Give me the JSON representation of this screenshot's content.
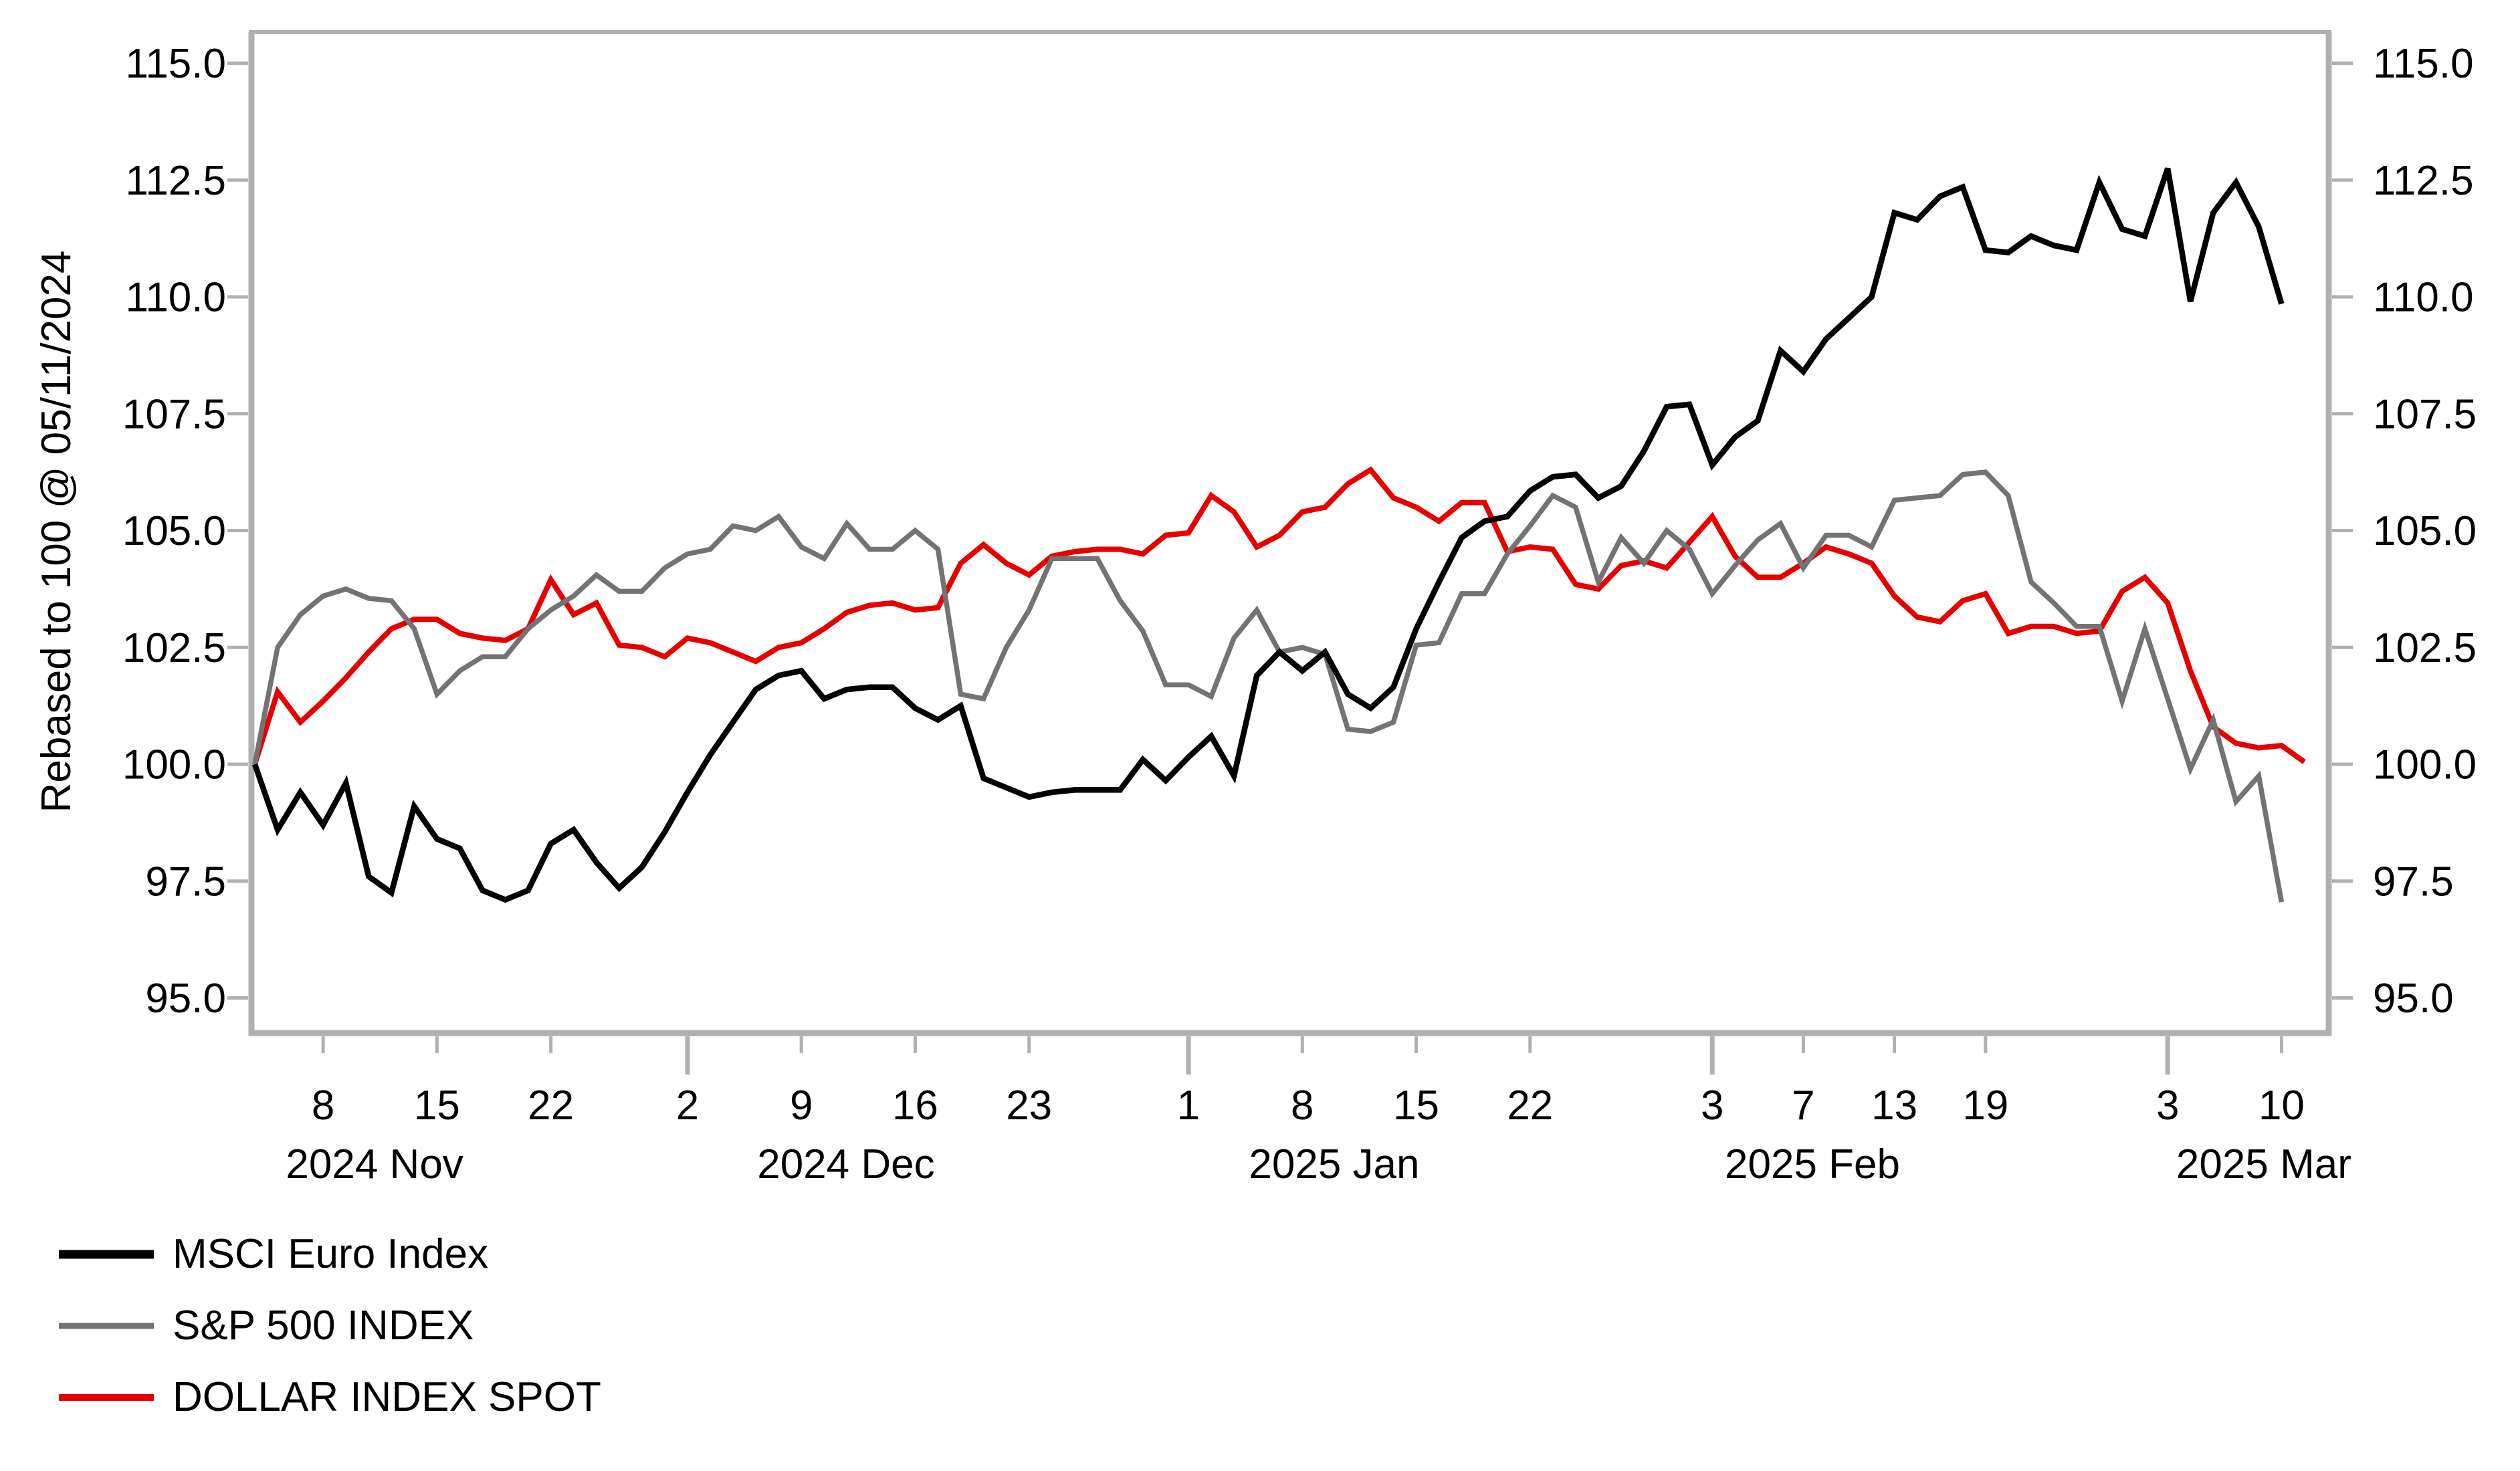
{
  "chart_data": {
    "type": "line",
    "title": "",
    "ylabel": "Rebased to 100 @ 05/11/2024",
    "y_axis": {
      "ticks": [
        95.0,
        97.5,
        100.0,
        102.5,
        105.0,
        107.5,
        110.0,
        112.5,
        115.0
      ],
      "tick_decimals": 1,
      "labels_on_both_sides": true,
      "ylim": [
        94.2,
        115.7
      ]
    },
    "x_axis": {
      "ticks": [
        {
          "label": "8",
          "index": 3,
          "major": false
        },
        {
          "label": "15",
          "index": 8,
          "major": false
        },
        {
          "label": "22",
          "index": 13,
          "major": false
        },
        {
          "label": "2",
          "index": 19,
          "major": true
        },
        {
          "label": "9",
          "index": 24,
          "major": false
        },
        {
          "label": "16",
          "index": 29,
          "major": false
        },
        {
          "label": "23",
          "index": 34,
          "major": false
        },
        {
          "label": "1",
          "index": 41,
          "major": true
        },
        {
          "label": "8",
          "index": 46,
          "major": false
        },
        {
          "label": "15",
          "index": 51,
          "major": false
        },
        {
          "label": "22",
          "index": 56,
          "major": false
        },
        {
          "label": "3",
          "index": 64,
          "major": true
        },
        {
          "label": "7",
          "index": 68,
          "major": false
        },
        {
          "label": "13",
          "index": 72,
          "major": false
        },
        {
          "label": "19",
          "index": 76,
          "major": false
        },
        {
          "label": "3",
          "index": 84,
          "major": true
        },
        {
          "label": "10",
          "index": 89,
          "major": false
        }
      ],
      "month_labels": [
        {
          "label": "2024 Nov",
          "index": 5.26
        },
        {
          "label": "2024 Dec",
          "index": 25.96
        },
        {
          "label": "2025 Jan",
          "index": 47.4
        },
        {
          "label": "2025 Feb",
          "index": 68.4
        },
        {
          "label": "2025 Mar",
          "index": 88.22
        }
      ]
    },
    "grid": false,
    "frame_color": "#b0b0b0",
    "dates": [
      "2024-11-05",
      "2024-11-06",
      "2024-11-07",
      "2024-11-08",
      "2024-11-11",
      "2024-11-12",
      "2024-11-13",
      "2024-11-14",
      "2024-11-15",
      "2024-11-18",
      "2024-11-19",
      "2024-11-20",
      "2024-11-21",
      "2024-11-22",
      "2024-11-25",
      "2024-11-26",
      "2024-11-27",
      "2024-11-28",
      "2024-11-29",
      "2024-12-02",
      "2024-12-03",
      "2024-12-04",
      "2024-12-05",
      "2024-12-06",
      "2024-12-09",
      "2024-12-10",
      "2024-12-11",
      "2024-12-12",
      "2024-12-13",
      "2024-12-16",
      "2024-12-17",
      "2024-12-18",
      "2024-12-19",
      "2024-12-20",
      "2024-12-23",
      "2024-12-24",
      "2024-12-25",
      "2024-12-26",
      "2024-12-27",
      "2024-12-30",
      "2024-12-31",
      "2025-01-01",
      "2025-01-02",
      "2025-01-03",
      "2025-01-06",
      "2025-01-07",
      "2025-01-08",
      "2025-01-09",
      "2025-01-10",
      "2025-01-13",
      "2025-01-14",
      "2025-01-15",
      "2025-01-16",
      "2025-01-17",
      "2025-01-20",
      "2025-01-21",
      "2025-01-22",
      "2025-01-23",
      "2025-01-24",
      "2025-01-27",
      "2025-01-28",
      "2025-01-29",
      "2025-01-30",
      "2025-01-31",
      "2025-02-03",
      "2025-02-04",
      "2025-02-05",
      "2025-02-06",
      "2025-02-07",
      "2025-02-10",
      "2025-02-11",
      "2025-02-12",
      "2025-02-13",
      "2025-02-14",
      "2025-02-17",
      "2025-02-18",
      "2025-02-19",
      "2025-02-20",
      "2025-02-21",
      "2025-02-24",
      "2025-02-25",
      "2025-02-26",
      "2025-02-27",
      "2025-02-28",
      "2025-03-03",
      "2025-03-04",
      "2025-03-05",
      "2025-03-06",
      "2025-03-07",
      "2025-03-10",
      "2025-03-11"
    ],
    "series": [
      {
        "name": "MSCI Euro Index",
        "color": "#000000",
        "values": [
          100.0,
          98.6,
          99.4,
          98.7,
          99.6,
          97.6,
          97.25,
          99.1,
          98.4,
          98.2,
          97.3,
          97.1,
          97.3,
          98.3,
          98.6,
          97.9,
          97.35,
          97.8,
          98.55,
          99.4,
          100.2,
          100.9,
          101.6,
          101.9,
          102.0,
          101.4,
          101.6,
          101.65,
          101.65,
          101.2,
          100.95,
          101.25,
          99.7,
          99.5,
          99.3,
          99.4,
          99.45,
          99.45,
          99.45,
          100.1,
          99.65,
          100.15,
          100.6,
          99.75,
          101.9,
          102.4,
          102.0,
          102.4,
          101.5,
          101.2,
          101.65,
          102.9,
          103.9,
          104.85,
          105.2,
          105.3,
          105.85,
          106.15,
          106.2,
          105.7,
          105.95,
          106.7,
          107.65,
          107.7,
          106.4,
          107.0,
          107.35,
          108.85,
          108.4,
          109.1,
          109.55,
          110.0,
          111.8,
          111.65,
          112.15,
          112.35,
          111.0,
          110.95,
          111.3,
          111.1,
          111.0,
          112.45,
          111.45,
          111.3,
          112.75,
          109.9,
          111.8,
          112.45,
          111.5,
          109.85,
          null
        ]
      },
      {
        "name": "S&P 500 INDEX",
        "color": "#737373",
        "values": [
          100.0,
          102.5,
          103.2,
          103.6,
          103.75,
          103.55,
          103.5,
          102.9,
          101.5,
          102.0,
          102.3,
          102.3,
          102.9,
          103.3,
          103.6,
          104.05,
          103.7,
          103.7,
          104.2,
          104.5,
          104.6,
          105.1,
          105.0,
          105.3,
          104.65,
          104.4,
          105.15,
          104.6,
          104.6,
          105.0,
          104.6,
          101.5,
          101.4,
          102.5,
          103.3,
          104.4,
          104.4,
          104.4,
          103.5,
          102.85,
          101.7,
          101.7,
          101.45,
          102.7,
          103.3,
          102.4,
          102.5,
          102.35,
          100.75,
          100.7,
          100.9,
          102.55,
          102.6,
          103.65,
          103.65,
          104.5,
          105.1,
          105.75,
          105.5,
          103.9,
          104.85,
          104.3,
          105.0,
          104.6,
          103.65,
          104.25,
          104.8,
          105.15,
          104.2,
          104.9,
          104.9,
          104.65,
          105.65,
          105.7,
          105.75,
          106.2,
          106.25,
          105.75,
          103.9,
          103.45,
          102.95,
          102.95,
          101.35,
          102.9,
          101.4,
          99.9,
          100.95,
          99.2,
          99.75,
          97.05,
          null
        ]
      },
      {
        "name": "DOLLAR INDEX SPOT",
        "color": "#e60000",
        "values": [
          100.0,
          101.55,
          100.9,
          101.35,
          101.85,
          102.4,
          102.9,
          103.1,
          103.1,
          102.8,
          102.7,
          102.65,
          102.9,
          103.95,
          103.2,
          103.45,
          102.55,
          102.5,
          102.3,
          102.7,
          102.6,
          102.4,
          102.2,
          102.5,
          102.6,
          102.9,
          103.25,
          103.4,
          103.45,
          103.3,
          103.35,
          104.3,
          104.7,
          104.3,
          104.05,
          104.45,
          104.55,
          104.6,
          104.6,
          104.5,
          104.9,
          104.95,
          105.75,
          105.4,
          104.65,
          104.9,
          105.4,
          105.5,
          106.0,
          106.3,
          105.7,
          105.5,
          105.2,
          105.6,
          105.6,
          104.55,
          104.65,
          104.6,
          103.85,
          103.75,
          104.25,
          104.35,
          104.2,
          104.75,
          105.3,
          104.45,
          104.0,
          104.0,
          104.3,
          104.65,
          104.5,
          104.3,
          103.6,
          103.15,
          103.05,
          103.5,
          103.65,
          102.8,
          102.95,
          102.95,
          102.8,
          102.85,
          103.7,
          104.0,
          103.45,
          102.0,
          100.8,
          100.45,
          100.35,
          100.4,
          100.05
        ]
      }
    ],
    "legend_position": "bottom-left"
  }
}
